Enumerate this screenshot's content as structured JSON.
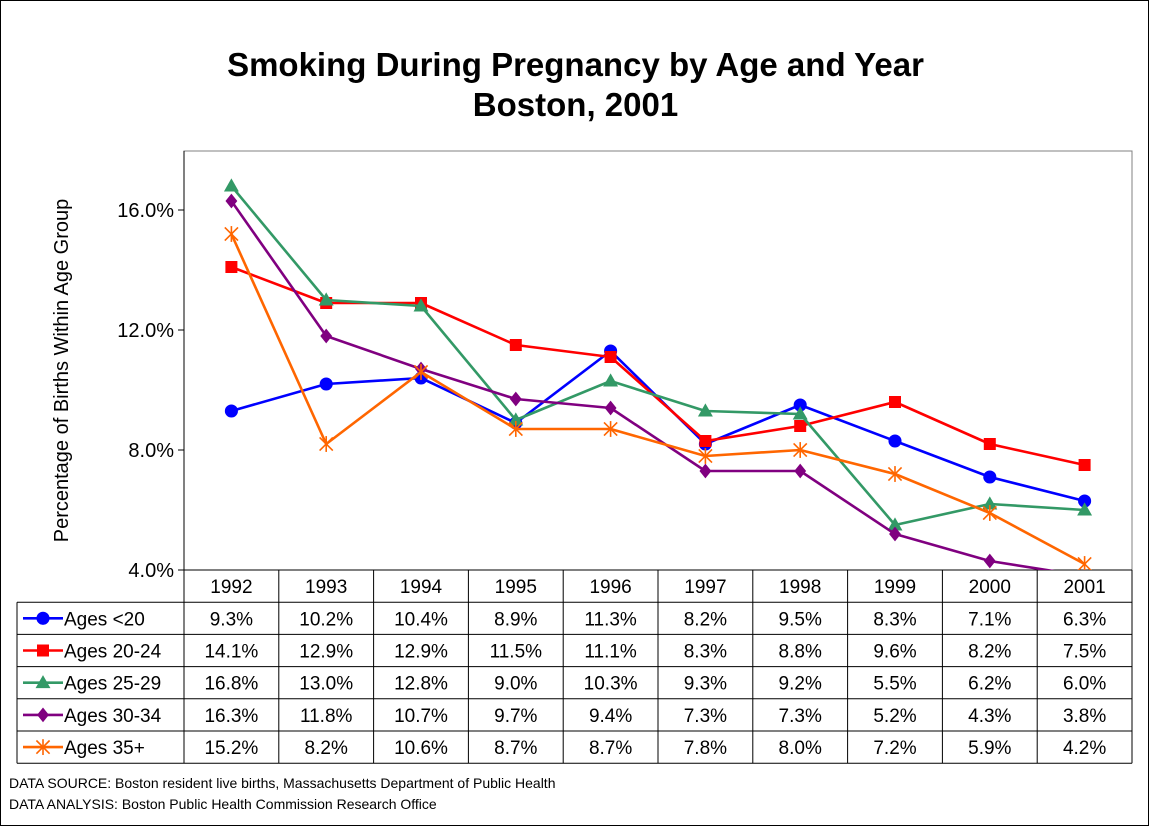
{
  "title_line1": "Smoking During Pregnancy by Age and Year",
  "title_line2": "Boston, 2001",
  "chart_data": {
    "type": "line",
    "title": "Smoking During Pregnancy by Age and Year Boston, 2001",
    "xlabel": "",
    "ylabel": "Percentage of Births Within Age Group",
    "categories": [
      "1992",
      "1993",
      "1994",
      "1995",
      "1996",
      "1997",
      "1998",
      "1999",
      "2000",
      "2001"
    ],
    "ylim": [
      4.0,
      18.0
    ],
    "yticks": [
      4.0,
      8.0,
      12.0,
      16.0
    ],
    "ytick_labels": [
      "4.0%",
      "8.0%",
      "12.0%",
      "16.0%"
    ],
    "grid": false,
    "legend": "data-table",
    "series": [
      {
        "name": "Ages <20",
        "color": "#0000ff",
        "marker": "circle",
        "values": [
          9.3,
          10.2,
          10.4,
          8.9,
          11.3,
          8.2,
          9.5,
          8.3,
          7.1,
          6.3
        ],
        "labels": [
          "9.3%",
          "10.2%",
          "10.4%",
          "8.9%",
          "11.3%",
          "8.2%",
          "9.5%",
          "8.3%",
          "7.1%",
          "6.3%"
        ]
      },
      {
        "name": "Ages 20-24",
        "color": "#ff0000",
        "marker": "square",
        "values": [
          14.1,
          12.9,
          12.9,
          11.5,
          11.1,
          8.3,
          8.8,
          9.6,
          8.2,
          7.5
        ],
        "labels": [
          "14.1%",
          "12.9%",
          "12.9%",
          "11.5%",
          "11.1%",
          "8.3%",
          "8.8%",
          "9.6%",
          "8.2%",
          "7.5%"
        ]
      },
      {
        "name": "Ages 25-29",
        "color": "#339966",
        "marker": "triangle",
        "values": [
          16.8,
          13.0,
          12.8,
          9.0,
          10.3,
          9.3,
          9.2,
          5.5,
          6.2,
          6.0
        ],
        "labels": [
          "16.8%",
          "13.0%",
          "12.8%",
          "9.0%",
          "10.3%",
          "9.3%",
          "9.2%",
          "5.5%",
          "6.2%",
          "6.0%"
        ]
      },
      {
        "name": "Ages 30-34",
        "color": "#800080",
        "marker": "diamond",
        "values": [
          16.3,
          11.8,
          10.7,
          9.7,
          9.4,
          7.3,
          7.3,
          5.2,
          4.3,
          3.8
        ],
        "labels": [
          "16.3%",
          "11.8%",
          "10.7%",
          "9.7%",
          "9.4%",
          "7.3%",
          "7.3%",
          "5.2%",
          "4.3%",
          "3.8%"
        ]
      },
      {
        "name": "Ages 35+",
        "color": "#ff6600",
        "marker": "star",
        "values": [
          15.2,
          8.2,
          10.6,
          8.7,
          8.7,
          7.8,
          8.0,
          7.2,
          5.9,
          4.2
        ],
        "labels": [
          "15.2%",
          "8.2%",
          "10.6%",
          "8.7%",
          "8.7%",
          "7.8%",
          "8.0%",
          "7.2%",
          "5.9%",
          "4.2%"
        ]
      }
    ]
  },
  "footer": {
    "source": "DATA SOURCE:  Boston resident live births, Massachusetts Department of Public Health",
    "analysis": "DATA ANALYSIS:  Boston Public Health Commission Research Office"
  }
}
